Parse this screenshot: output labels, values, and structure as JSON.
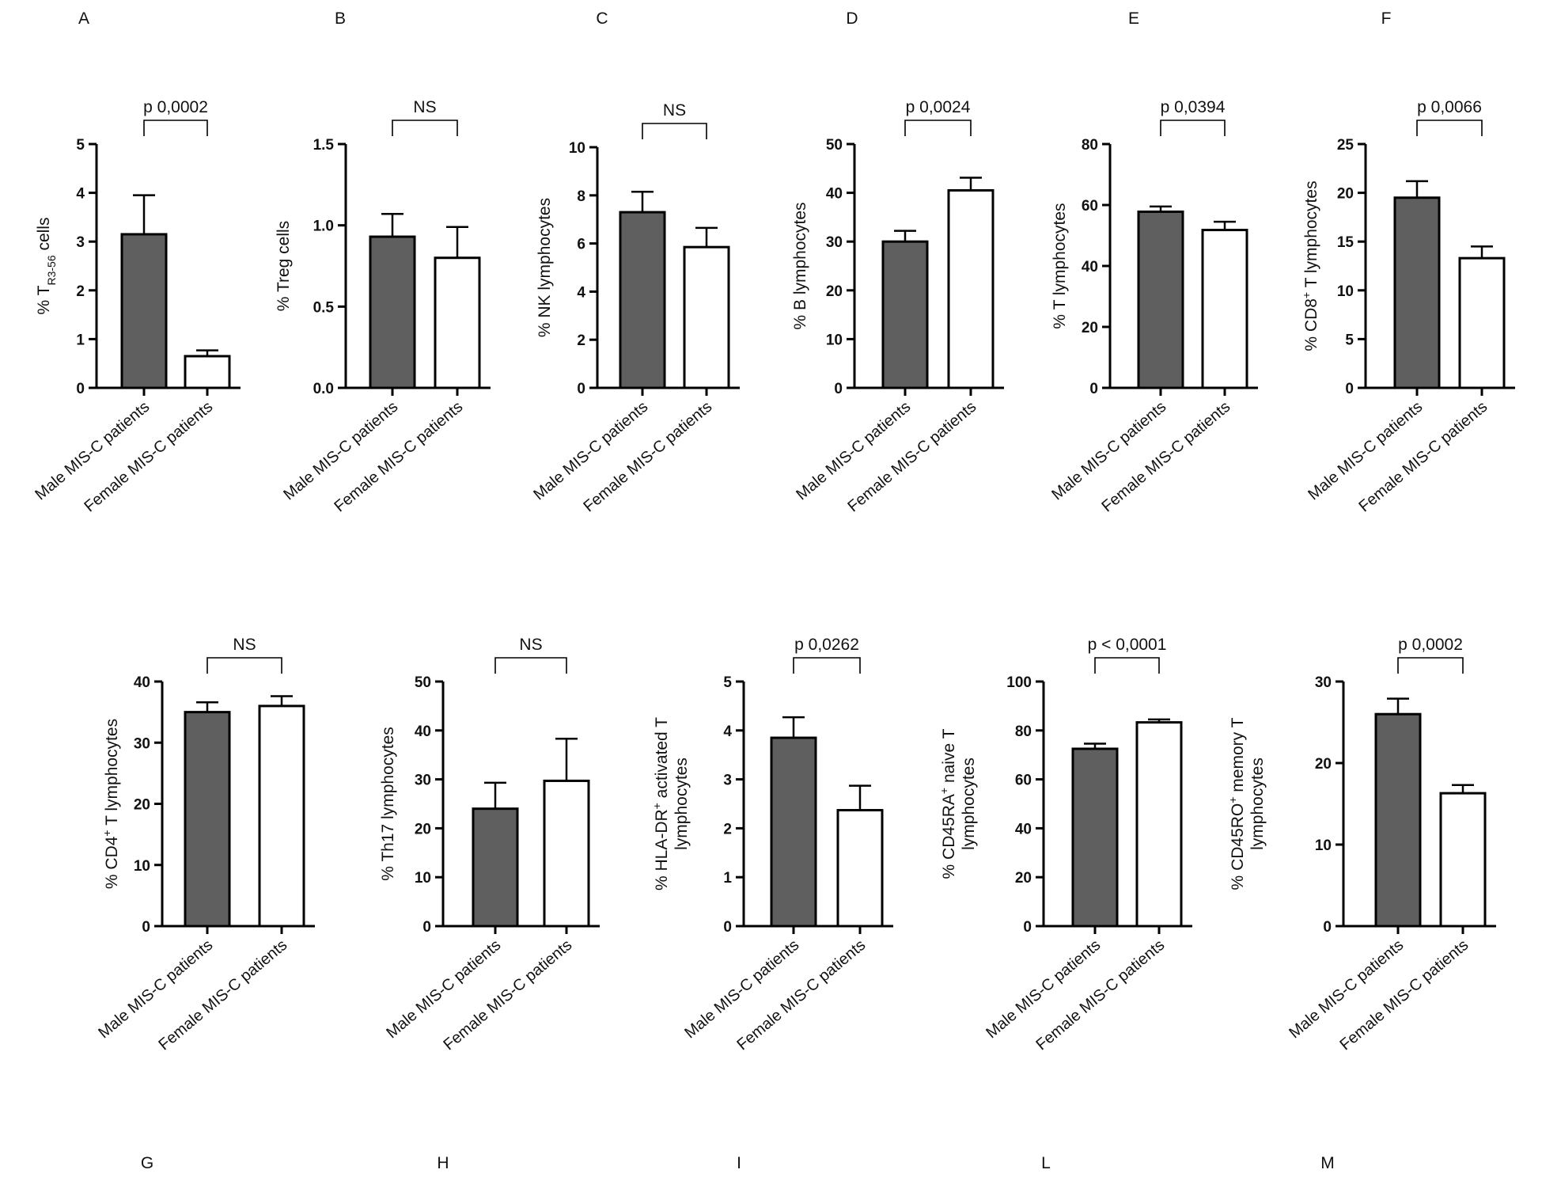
{
  "colors": {
    "male_bar": "#5f5f5f",
    "female_bar": "#ffffff",
    "axis": "#000000"
  },
  "chart_data": [
    {
      "type": "bar",
      "panel": "A",
      "title": "",
      "ylabel": "% T_R3-56 cells",
      "ylabel_parts": [
        {
          "t": "% T"
        },
        {
          "t": "R3-56",
          "sub": true
        },
        {
          "t": " cells"
        }
      ],
      "categories": [
        "Male MIS-C patients",
        "Female MIS-C patients"
      ],
      "values": [
        3.15,
        0.65
      ],
      "errors": [
        0.8,
        0.12
      ],
      "ylim": [
        0,
        5
      ],
      "yticks": [
        "0",
        "1",
        "2",
        "3",
        "4",
        "5"
      ],
      "significance": "p 0,0002"
    },
    {
      "type": "bar",
      "panel": "B",
      "title": "",
      "ylabel": "% Treg cells",
      "ylabel_parts": [
        {
          "t": "% Treg cells"
        }
      ],
      "categories": [
        "Male MIS-C patients",
        "Female MIS-C patients"
      ],
      "values": [
        0.93,
        0.8
      ],
      "errors": [
        0.14,
        0.19
      ],
      "ylim": [
        0,
        1.5
      ],
      "yticks": [
        "0.0",
        "0.5",
        "1.0",
        "1.5"
      ],
      "significance": "NS"
    },
    {
      "type": "bar",
      "panel": "C",
      "title": "",
      "ylabel": "% NK lymphocytes",
      "ylabel_parts": [
        {
          "t": "% NK lymphocytes"
        }
      ],
      "categories": [
        "Male MIS-C patients",
        "Female MIS-C patients"
      ],
      "values": [
        7.3,
        5.85
      ],
      "errors": [
        0.85,
        0.8
      ],
      "ylim": [
        0,
        10
      ],
      "yticks": [
        "0",
        "2",
        "4",
        "6",
        "8",
        "10"
      ],
      "significance": "NS"
    },
    {
      "type": "bar",
      "panel": "D",
      "title": "",
      "ylabel": "% B lymphocytes",
      "ylabel_parts": [
        {
          "t": "% B lymphocytes"
        }
      ],
      "categories": [
        "Male MIS-C patients",
        "Female MIS-C patients"
      ],
      "values": [
        30,
        40.5
      ],
      "errors": [
        2.2,
        2.6
      ],
      "ylim": [
        0,
        50
      ],
      "yticks": [
        "0",
        "10",
        "20",
        "30",
        "40",
        "50"
      ],
      "significance": "p 0,0024"
    },
    {
      "type": "bar",
      "panel": "E",
      "title": "",
      "ylabel": "% T lymphocytes",
      "ylabel_parts": [
        {
          "t": "% T lymphocytes"
        }
      ],
      "categories": [
        "Male MIS-C patients",
        "Female MIS-C patients"
      ],
      "values": [
        57.8,
        51.8
      ],
      "errors": [
        1.7,
        2.7
      ],
      "ylim": [
        0,
        80
      ],
      "yticks": [
        "0",
        "20",
        "40",
        "60",
        "80"
      ],
      "significance": "p 0,0394"
    },
    {
      "type": "bar",
      "panel": "F",
      "title": "",
      "ylabel": "% CD8+ T lymphocytes",
      "ylabel_parts": [
        {
          "t": "% CD8"
        },
        {
          "t": "+",
          "sup": true
        },
        {
          "t": " T lymphocytes"
        }
      ],
      "categories": [
        "Male MIS-C patients",
        "Female MIS-C patients"
      ],
      "values": [
        19.5,
        13.3
      ],
      "errors": [
        1.7,
        1.2
      ],
      "ylim": [
        0,
        25
      ],
      "yticks": [
        "0",
        "5",
        "10",
        "15",
        "20",
        "25"
      ],
      "significance": "p 0,0066"
    },
    {
      "type": "bar",
      "panel": "G",
      "title": "",
      "ylabel": "% CD4+ T lymphocytes",
      "ylabel_parts": [
        {
          "t": "% CD4"
        },
        {
          "t": "+",
          "sup": true
        },
        {
          "t": " T lymphocytes"
        }
      ],
      "categories": [
        "Male MIS-C patients",
        "Female MIS-C patients"
      ],
      "values": [
        35,
        36
      ],
      "errors": [
        1.6,
        1.6
      ],
      "ylim": [
        0,
        40
      ],
      "yticks": [
        "0",
        "10",
        "20",
        "30",
        "40"
      ],
      "significance": "NS"
    },
    {
      "type": "bar",
      "panel": "H",
      "title": "",
      "ylabel": "% Th17 lymphocytes",
      "ylabel_parts": [
        {
          "t": "% Th17 lymphocytes"
        }
      ],
      "categories": [
        "Male MIS-C patients",
        "Female MIS-C patients"
      ],
      "values": [
        24,
        29.7
      ],
      "errors": [
        5.3,
        8.6
      ],
      "ylim": [
        0,
        50
      ],
      "yticks": [
        "0",
        "10",
        "20",
        "30",
        "40",
        "50"
      ],
      "significance": "NS"
    },
    {
      "type": "bar",
      "panel": "I",
      "title": "",
      "ylabel": "% HLA-DR+ activated T lymphocytes",
      "ylabel_parts": [
        {
          "t": "% HLA-DR"
        },
        {
          "t": "+",
          "sup": true
        },
        {
          "t": " activated T"
        }
      ],
      "ylabel_line2": "lymphocytes",
      "categories": [
        "Male MIS-C patients",
        "Female MIS-C patients"
      ],
      "values": [
        3.85,
        2.37
      ],
      "errors": [
        0.42,
        0.5
      ],
      "ylim": [
        0,
        5
      ],
      "yticks": [
        "0",
        "1",
        "2",
        "3",
        "4",
        "5"
      ],
      "significance": "p 0,0262"
    },
    {
      "type": "bar",
      "panel": "L",
      "title": "",
      "ylabel": "% CD45RA+ naive T lymphocytes",
      "ylabel_parts": [
        {
          "t": "% CD45RA"
        },
        {
          "t": "+",
          "sup": true
        },
        {
          "t": " naive T"
        }
      ],
      "ylabel_line2": "lymphocytes",
      "categories": [
        "Male MIS-C patients",
        "Female MIS-C patients"
      ],
      "values": [
        72.5,
        83.3
      ],
      "errors": [
        2.1,
        1.2
      ],
      "ylim": [
        0,
        100
      ],
      "yticks": [
        "0",
        "20",
        "40",
        "60",
        "80",
        "100"
      ],
      "significance": "p < 0,0001"
    },
    {
      "type": "bar",
      "panel": "M",
      "title": "",
      "ylabel": "% CD45RO+ memory T lymphocytes",
      "ylabel_parts": [
        {
          "t": "% CD45RO"
        },
        {
          "t": "+",
          "sup": true
        },
        {
          "t": " memory T"
        }
      ],
      "ylabel_line2": "lymphocytes",
      "categories": [
        "Male MIS-C patients",
        "Female MIS-C patients"
      ],
      "values": [
        26,
        16.3
      ],
      "errors": [
        1.9,
        1.0
      ],
      "ylim": [
        0,
        30
      ],
      "yticks": [
        "0",
        "10",
        "20",
        "30"
      ],
      "significance": "p 0,0002"
    }
  ]
}
